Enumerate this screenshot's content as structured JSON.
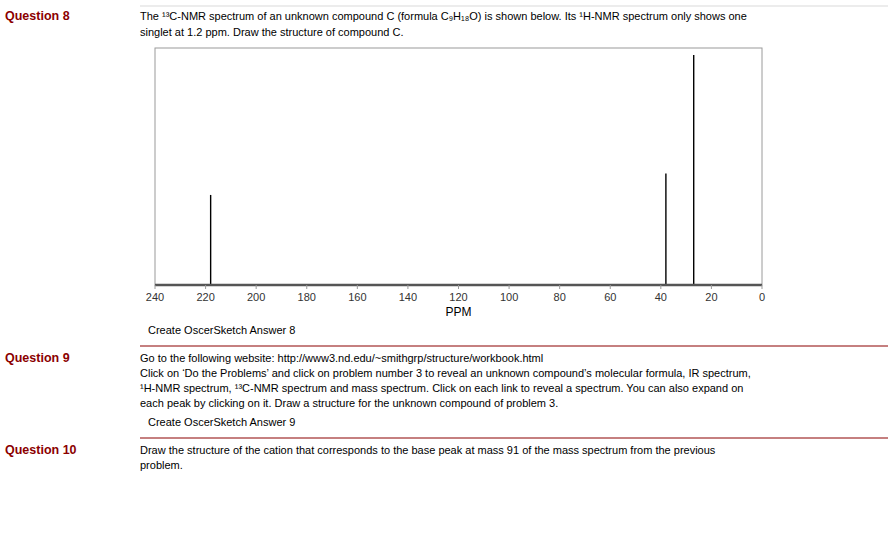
{
  "chart_data": {
    "type": "stem",
    "x": [
      218,
      38,
      27
    ],
    "values": [
      0.38,
      0.47,
      0.97
    ],
    "color": "#000000",
    "xlim": [
      240,
      0
    ],
    "ylim": [
      0,
      1.0
    ],
    "xticks": [
      240,
      220,
      200,
      180,
      160,
      140,
      120,
      100,
      80,
      60,
      40,
      20,
      0
    ],
    "xlabel": "PPM",
    "tick_labels": "x",
    "grid": false,
    "annotations": [
      "Question 8",
      "The ¹³C-NMR spectrum of an unknown compound C (formula C₉H₁₈O) is shown below.   Its ¹H-NMR spectrum only shows one",
      "singlet at 1.2 ppm.  Draw the structure of compound C.",
      "Create OscerSketch Answer 8",
      "Question 9",
      "Go to the following website:  http://www3.nd.edu/~smithgrp/structure/workbook.html",
      "Click on ‘Do the Problems’ and click on problem number 3 to reveal an unknown compound’s molecular formula, IR spectrum,",
      "¹H-NMR spectrum, ¹³C-NMR spectrum and mass spectrum.  Click on each link to reveal a spectrum.  You can also expand on",
      "each peak by clicking on it.  Draw a structure for the unknown compound of problem 3.",
      "Create OscerSketch Answer 9",
      "Question 10",
      "Draw the structure of the cation that corresponds to the base peak at mass 91 of the mass spectrum from the previous",
      "problem."
    ]
  }
}
